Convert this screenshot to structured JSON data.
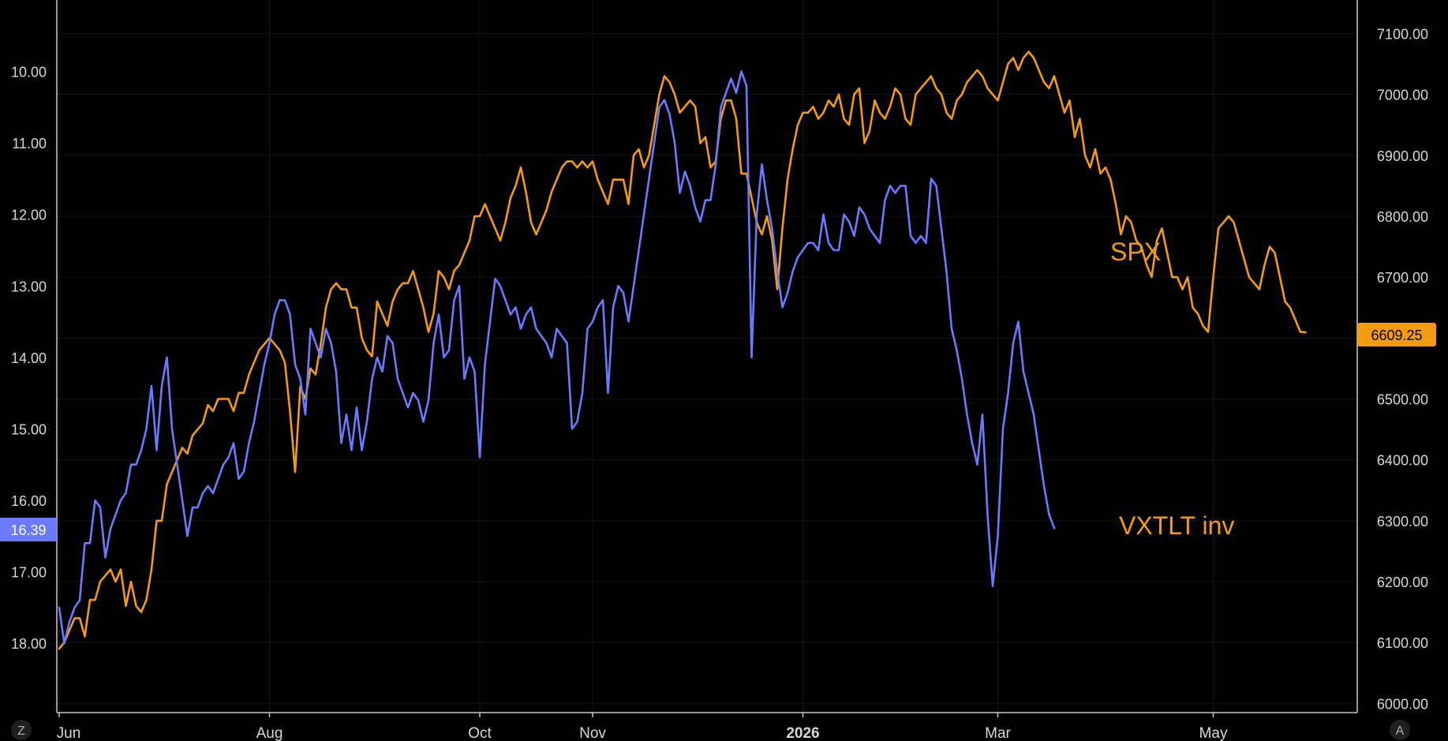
{
  "chart_data": {
    "type": "line",
    "title": "",
    "left_axis": {
      "ticks": [
        "10.00",
        "11.00",
        "12.00",
        "13.00",
        "14.00",
        "15.00",
        "16.00",
        "17.00",
        "18.00"
      ],
      "tick_values": [
        10,
        11,
        12,
        13,
        14,
        15,
        16,
        17,
        18
      ],
      "range": [
        9.0,
        18.97
      ],
      "inverted": true,
      "current_label": "16.39",
      "current_value": 16.39,
      "badge_color": "#6b7bff"
    },
    "right_axis": {
      "ticks": [
        "7100.00",
        "7000.00",
        "6900.00",
        "6800.00",
        "6700.00",
        "6600.00",
        "6500.00",
        "6400.00",
        "6300.00",
        "6200.00",
        "6100.00",
        "6000.00"
      ],
      "tick_values": [
        7100,
        7000,
        6900,
        6800,
        6700,
        6600,
        6500,
        6400,
        6300,
        6200,
        6100,
        6000
      ],
      "range": [
        5985,
        7155
      ],
      "current_label": "6609.25",
      "current_value": 6609.25,
      "badge_color": "#f39c12"
    },
    "x_axis": {
      "ticks": [
        {
          "label": "Jun",
          "idx": 0,
          "bold": false
        },
        {
          "label": "Aug",
          "idx": 41,
          "bold": false
        },
        {
          "label": "Oct",
          "idx": 82,
          "bold": false
        },
        {
          "label": "Nov",
          "idx": 104,
          "bold": false
        },
        {
          "label": "2026",
          "idx": 145,
          "bold": true
        },
        {
          "label": "Mar",
          "idx": 183,
          "bold": false
        },
        {
          "label": "May",
          "idx": 225,
          "bold": false
        }
      ],
      "index_range": [
        0,
        250
      ]
    },
    "series": [
      {
        "name": "SPX",
        "axis": "right",
        "color": "#f39c12",
        "values": [
          6090,
          6100,
          6120,
          6140,
          6140,
          6110,
          6170,
          6170,
          6200,
          6210,
          6220,
          6200,
          6220,
          6160,
          6200,
          6160,
          6150,
          6170,
          6220,
          6300,
          6300,
          6360,
          6380,
          6400,
          6420,
          6410,
          6440,
          6450,
          6460,
          6490,
          6480,
          6500,
          6500,
          6500,
          6480,
          6510,
          6510,
          6540,
          6560,
          6580,
          6590,
          6600,
          6590,
          6580,
          6560,
          6480,
          6380,
          6520,
          6500,
          6550,
          6540,
          6590,
          6650,
          6680,
          6690,
          6680,
          6680,
          6650,
          6650,
          6600,
          6580,
          6570,
          6660,
          6640,
          6620,
          6660,
          6680,
          6690,
          6690,
          6710,
          6680,
          6650,
          6610,
          6640,
          6710,
          6700,
          6680,
          6710,
          6720,
          6740,
          6760,
          6800,
          6800,
          6820,
          6800,
          6780,
          6760,
          6790,
          6830,
          6850,
          6880,
          6840,
          6790,
          6770,
          6790,
          6810,
          6840,
          6860,
          6880,
          6890,
          6890,
          6880,
          6890,
          6880,
          6890,
          6860,
          6840,
          6820,
          6860,
          6860,
          6860,
          6820,
          6900,
          6910,
          6880,
          6900,
          6950,
          7000,
          7030,
          7020,
          7000,
          6970,
          6980,
          6990,
          6980,
          6920,
          6930,
          6880,
          6890,
          6960,
          6990,
          6990,
          6960,
          6870,
          6870,
          6830,
          6790,
          6770,
          6800,
          6760,
          6680,
          6780,
          6860,
          6910,
          6950,
          6970,
          6970,
          6980,
          6960,
          6970,
          6990,
          6980,
          7000,
          6960,
          6950,
          7000,
          7010,
          6920,
          6940,
          6990,
          6970,
          6960,
          6980,
          7010,
          7000,
          6960,
          6950,
          7000,
          7010,
          7020,
          7030,
          7010,
          7000,
          6970,
          6960,
          6990,
          7000,
          7020,
          7030,
          7040,
          7030,
          7010,
          7000,
          6990,
          7020,
          7050,
          7060,
          7040,
          7060,
          7070,
          7060,
          7040,
          7020,
          7010,
          7030,
          7000,
          6970,
          6990,
          6930,
          6960,
          6900,
          6880,
          6910,
          6870,
          6880,
          6860,
          6820,
          6770,
          6800,
          6790,
          6760,
          6750,
          6720,
          6700,
          6760,
          6780,
          6740,
          6700,
          6700,
          6680,
          6700,
          6650,
          6640,
          6620,
          6610,
          6700,
          6780,
          6790,
          6800,
          6790,
          6760,
          6730,
          6700,
          6690,
          6680,
          6720,
          6750,
          6740,
          6700,
          6660,
          6650,
          6630,
          6610,
          6609.25
        ]
      },
      {
        "name": "VXTLT inv",
        "axis": "left",
        "color": "#6b7bff",
        "values": [
          17.5,
          18.0,
          17.7,
          17.5,
          17.4,
          16.6,
          16.6,
          16.0,
          16.1,
          16.8,
          16.4,
          16.2,
          16.0,
          15.9,
          15.5,
          15.5,
          15.3,
          15.0,
          14.4,
          15.3,
          14.4,
          14.0,
          15.0,
          15.5,
          16.0,
          16.5,
          16.1,
          16.1,
          15.9,
          15.8,
          15.9,
          15.7,
          15.5,
          15.4,
          15.2,
          15.7,
          15.6,
          15.2,
          14.9,
          14.5,
          14.1,
          13.8,
          13.4,
          13.2,
          13.2,
          13.4,
          14.1,
          14.3,
          14.8,
          13.6,
          13.8,
          14.0,
          13.6,
          13.8,
          14.2,
          15.2,
          14.8,
          15.3,
          14.7,
          15.3,
          14.9,
          14.3,
          14.0,
          14.2,
          13.7,
          13.8,
          14.3,
          14.5,
          14.7,
          14.5,
          14.6,
          14.9,
          14.6,
          13.8,
          13.4,
          14.0,
          13.9,
          13.2,
          13.0,
          14.3,
          14.0,
          14.2,
          15.4,
          14.1,
          13.5,
          12.9,
          13.0,
          13.2,
          13.4,
          13.3,
          13.6,
          13.4,
          13.3,
          13.6,
          13.7,
          13.8,
          14.0,
          13.6,
          13.7,
          13.8,
          15.0,
          14.9,
          14.5,
          13.6,
          13.5,
          13.3,
          13.2,
          14.5,
          13.3,
          13.0,
          13.1,
          13.5,
          13.0,
          12.5,
          12.0,
          11.5,
          11.0,
          10.5,
          10.4,
          10.6,
          11.0,
          11.7,
          11.4,
          11.6,
          11.9,
          12.1,
          11.8,
          11.8,
          11.3,
          10.5,
          10.3,
          10.1,
          10.3,
          10.0,
          10.2,
          14.0,
          12.0,
          11.3,
          11.8,
          12.2,
          12.8,
          13.3,
          13.1,
          12.8,
          12.6,
          12.5,
          12.4,
          12.4,
          12.5,
          12.0,
          12.4,
          12.5,
          12.5,
          12.0,
          12.1,
          12.3,
          11.9,
          12.0,
          12.2,
          12.3,
          12.4,
          11.8,
          11.6,
          11.7,
          11.6,
          11.6,
          12.3,
          12.4,
          12.3,
          12.4,
          11.5,
          11.6,
          12.2,
          12.8,
          13.6,
          13.9,
          14.3,
          14.8,
          15.2,
          15.5,
          14.8,
          16.2,
          17.2,
          16.5,
          15.0,
          14.5,
          13.8,
          13.5,
          14.2,
          14.5,
          14.8,
          15.3,
          15.8,
          16.2,
          16.39
        ]
      }
    ],
    "annotations": [
      {
        "text": "SPX",
        "color": "#f39c12"
      },
      {
        "text": "VXTLT inv",
        "color": "#f39c12"
      }
    ],
    "grid": true,
    "background": "#000000",
    "corner_buttons": {
      "left": "Z",
      "right": "A"
    }
  }
}
